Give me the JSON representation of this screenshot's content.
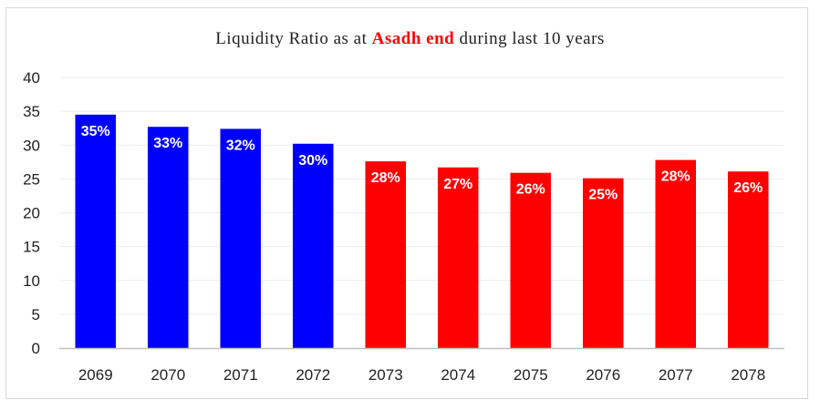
{
  "chart_data": {
    "type": "bar",
    "title_parts": [
      "Liquidity Ratio as at ",
      "Asadh end",
      " during last 10 years"
    ],
    "categories": [
      "2069",
      "2070",
      "2071",
      "2072",
      "2073",
      "2074",
      "2075",
      "2076",
      "2077",
      "2078"
    ],
    "values": [
      34.5,
      32.7,
      32.4,
      30.2,
      27.6,
      26.7,
      25.9,
      25.1,
      27.8,
      26.1
    ],
    "data_labels": [
      "35%",
      "33%",
      "32%",
      "30%",
      "28%",
      "27%",
      "26%",
      "25%",
      "28%",
      "26%"
    ],
    "bar_colors": [
      "#0000ff",
      "#0000ff",
      "#0000ff",
      "#0000ff",
      "#ff0000",
      "#ff0000",
      "#ff0000",
      "#ff0000",
      "#ff0000",
      "#ff0000"
    ],
    "ylim": [
      0,
      40
    ],
    "yticks": [
      0,
      5,
      10,
      15,
      20,
      25,
      30,
      35,
      40
    ],
    "xlabel": "",
    "ylabel": "",
    "grid": true,
    "legend": "none"
  }
}
